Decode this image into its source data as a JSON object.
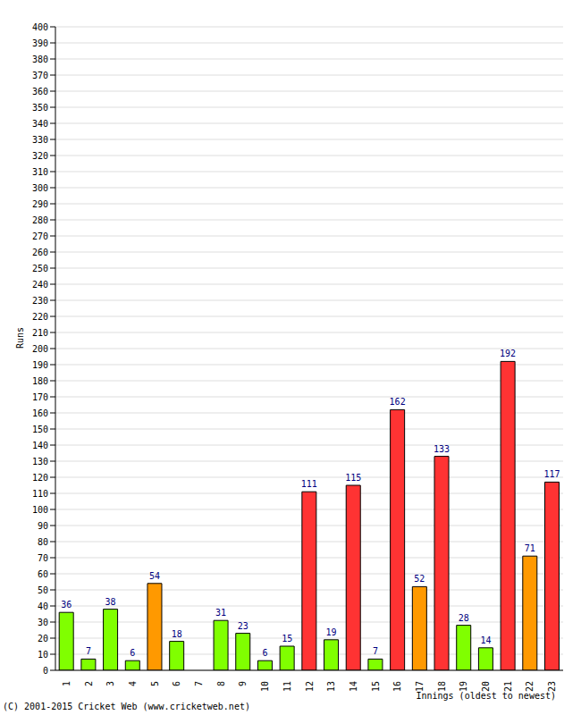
{
  "chart_data": {
    "type": "bar",
    "categories": [
      "1",
      "2",
      "3",
      "4",
      "5",
      "6",
      "7",
      "8",
      "9",
      "10",
      "11",
      "12",
      "13",
      "14",
      "15",
      "16",
      "17",
      "18",
      "19",
      "20",
      "21",
      "22",
      "23"
    ],
    "values": [
      36,
      7,
      38,
      6,
      54,
      18,
      0,
      31,
      23,
      6,
      15,
      111,
      19,
      115,
      7,
      162,
      52,
      133,
      28,
      14,
      192,
      71,
      117
    ],
    "colors": [
      "#80ff00",
      "#80ff00",
      "#80ff00",
      "#80ff00",
      "#ff9900",
      "#80ff00",
      "#80ff00",
      "#80ff00",
      "#80ff00",
      "#80ff00",
      "#80ff00",
      "#ff3333",
      "#80ff00",
      "#ff3333",
      "#80ff00",
      "#ff3333",
      "#ff9900",
      "#ff3333",
      "#80ff00",
      "#80ff00",
      "#ff3333",
      "#ff9900",
      "#ff3333"
    ],
    "x_label": "Innings (oldest to newest)",
    "y_label": "Runs",
    "annotations": [
      "(C) 2001-2015 Cricket Web (www.cricketweb.net)"
    ],
    "ylim": [
      0,
      400
    ],
    "yticks": [
      0,
      10,
      20,
      30,
      40,
      50,
      60,
      70,
      80,
      90,
      100,
      110,
      120,
      130,
      140,
      150,
      160,
      170,
      180,
      190,
      200,
      210,
      220,
      230,
      240,
      250,
      260,
      270,
      280,
      290,
      300,
      310,
      320,
      330,
      340,
      350,
      360,
      370,
      380,
      390,
      400
    ],
    "grid": true,
    "data_labels": true
  }
}
